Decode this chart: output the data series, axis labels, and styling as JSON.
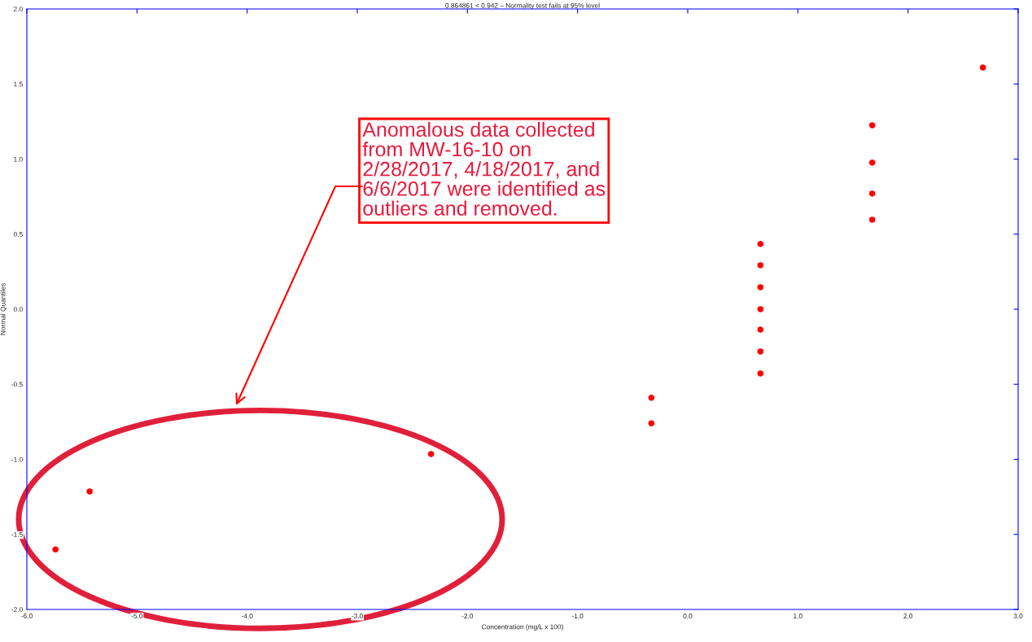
{
  "chart_data": {
    "type": "scatter",
    "title": "0.864861 < 0.942 – Normality test fails at 95% level",
    "xlabel": "Concentration (mg/L x 100)",
    "ylabel": "Normal Quantiles",
    "x": [
      2.68,
      1.675,
      1.675,
      1.675,
      1.675,
      0.66,
      0.66,
      0.66,
      0.66,
      0.66,
      0.66,
      0.66,
      -0.33,
      -0.33,
      -2.33,
      -5.43,
      -5.74
    ],
    "values": [
      1.61,
      1.225,
      0.976,
      0.77,
      0.596,
      0.434,
      0.293,
      0.146,
      0.0,
      -0.136,
      -0.282,
      -0.428,
      -0.59,
      -0.76,
      -0.965,
      -1.214,
      -1.6
    ],
    "color": "#ff0000",
    "marker": "circle",
    "xlim": [
      -6.0,
      3.0
    ],
    "xticks": [
      {
        "value": -6,
        "label": "-6.0"
      },
      {
        "value": -5,
        "label": "-5.0"
      },
      {
        "value": -4,
        "label": "-4.0"
      },
      {
        "value": -3,
        "label": "-3.0"
      },
      {
        "value": -2,
        "label": "-2.0"
      },
      {
        "value": -1,
        "label": "-1.0"
      },
      {
        "value": 0,
        "label": "0.0"
      },
      {
        "value": 1,
        "label": "1.0"
      },
      {
        "value": 2,
        "label": "2.0"
      },
      {
        "value": 3,
        "label": "3.0"
      }
    ],
    "ylim": [
      -2.0,
      2.0
    ],
    "yticks": [
      {
        "value": -2,
        "label": "-2.0"
      },
      {
        "value": -1.5,
        "label": "-1.5"
      },
      {
        "value": -1,
        "label": "-1.0"
      },
      {
        "value": -0.5,
        "label": "-0.5"
      },
      {
        "value": 0,
        "label": "0.0"
      },
      {
        "value": 0.5,
        "label": "0.5"
      },
      {
        "value": 1,
        "label": "1.0"
      },
      {
        "value": 1.5,
        "label": "1.5"
      },
      {
        "value": 2,
        "label": "2.0"
      }
    ],
    "grid": false,
    "legend": false,
    "annotations": [
      "Anomalous data collected\nfrom MW-16-10 on\n2/28/2017, 4/18/2017, and\n6/6/2017 were identified as\noutliers and removed."
    ]
  }
}
